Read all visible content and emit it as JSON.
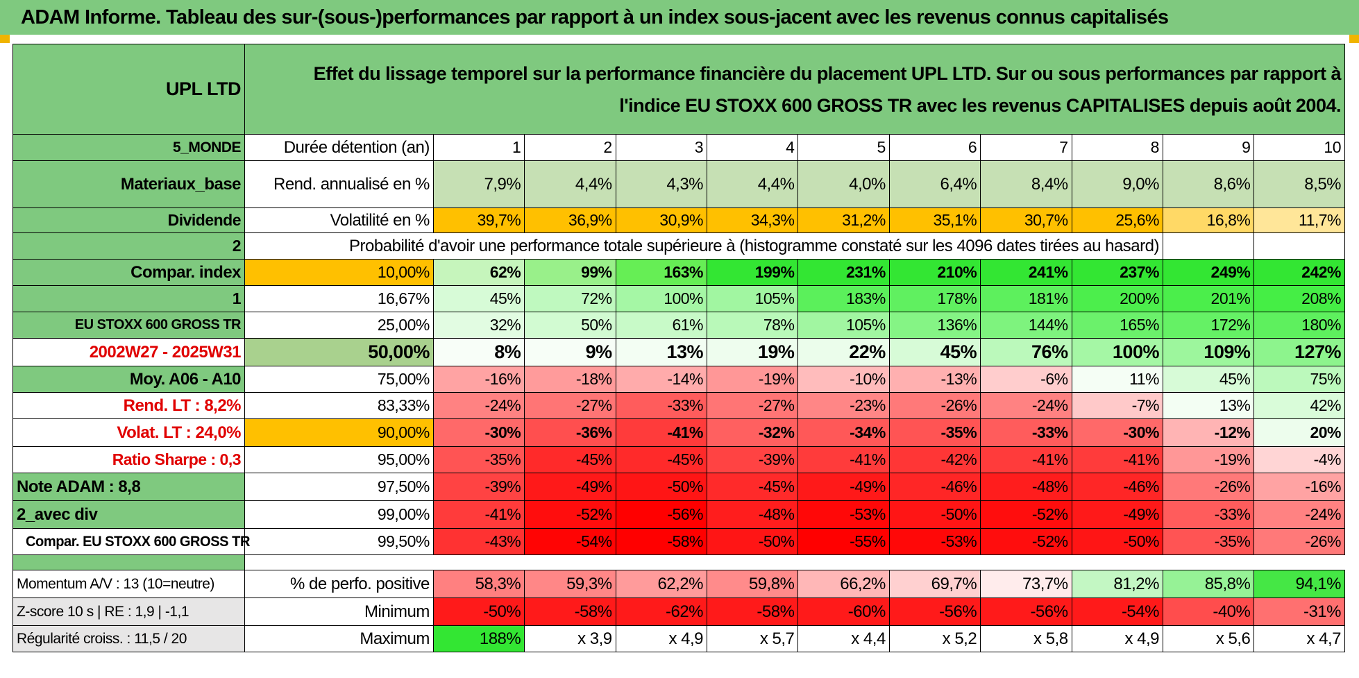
{
  "title": "ADAM Informe. Tableau des sur-(sous-)performances par rapport à un index sous-jacent avec les revenus connus capitalisés",
  "header": {
    "ticker": "UPL LTD",
    "description": "Effet du lissage temporel sur la performance financière du placement UPL LTD. Sur ou sous performances par rapport à l'indice EU STOXX 600 GROSS TR avec les revenus CAPITALISES depuis août 2004."
  },
  "left_labels": {
    "region": "5_MONDE",
    "sector": "Materiaux_base",
    "dividend": "Dividende",
    "val2": "2",
    "compar_index": "Compar. index",
    "val1": "1",
    "index_name": "EU STOXX 600 GROSS TR",
    "period": "2002W27 - 2025W31",
    "moy": "Moy. A06 - A10",
    "rend_lt": "Rend. LT :    8,2%",
    "volat_lt": "Volat. LT :    24,0%",
    "sharpe": "Ratio Sharpe :     0,3",
    "note": "Note ADAM : 8,8",
    "avec_div": "2_avec div",
    "compar_eu": "Compar. EU STOXX 600 GROSS TR",
    "momentum": "Momentum A/V : 13 (10=neutre)",
    "zscore": "Z-score 10 s | RE : 1,9 | -1,1",
    "regularite": "Régularité croiss. : 11,5 / 20"
  },
  "rows": {
    "duree": {
      "label": "Durée détention (an)",
      "values": [
        "1",
        "2",
        "3",
        "4",
        "5",
        "6",
        "7",
        "8",
        "9",
        "10"
      ]
    },
    "rend": {
      "label": "Rend. annualisé en %",
      "values": [
        "7,9%",
        "4,4%",
        "4,3%",
        "4,4%",
        "4,0%",
        "6,4%",
        "8,4%",
        "9,0%",
        "8,6%",
        "8,5%"
      ]
    },
    "vol": {
      "label": "Volatilité en %",
      "values": [
        "39,7%",
        "36,9%",
        "30,9%",
        "34,3%",
        "31,2%",
        "35,1%",
        "30,7%",
        "25,6%",
        "16,8%",
        "11,7%"
      ]
    },
    "proba_title": "Probabilité d'avoir une performance totale supérieure à (histogramme constaté sur les 4096 dates tirées au hasard)",
    "perc": [
      {
        "p": "10,00%",
        "values": [
          "62%",
          "99%",
          "163%",
          "199%",
          "231%",
          "210%",
          "241%",
          "237%",
          "249%",
          "242%"
        ]
      },
      {
        "p": "16,67%",
        "values": [
          "45%",
          "72%",
          "100%",
          "105%",
          "183%",
          "178%",
          "181%",
          "200%",
          "201%",
          "208%"
        ]
      },
      {
        "p": "25,00%",
        "values": [
          "32%",
          "50%",
          "61%",
          "78%",
          "105%",
          "136%",
          "144%",
          "165%",
          "172%",
          "180%"
        ]
      },
      {
        "p": "50,00%",
        "values": [
          "8%",
          "9%",
          "13%",
          "19%",
          "22%",
          "45%",
          "76%",
          "100%",
          "109%",
          "127%"
        ]
      },
      {
        "p": "75,00%",
        "values": [
          "-16%",
          "-18%",
          "-14%",
          "-19%",
          "-10%",
          "-13%",
          "-6%",
          "11%",
          "45%",
          "75%"
        ]
      },
      {
        "p": "83,33%",
        "values": [
          "-24%",
          "-27%",
          "-33%",
          "-27%",
          "-23%",
          "-26%",
          "-24%",
          "-7%",
          "13%",
          "42%"
        ]
      },
      {
        "p": "90,00%",
        "values": [
          "-30%",
          "-36%",
          "-41%",
          "-32%",
          "-34%",
          "-35%",
          "-33%",
          "-30%",
          "-12%",
          "20%"
        ]
      },
      {
        "p": "95,00%",
        "values": [
          "-35%",
          "-45%",
          "-45%",
          "-39%",
          "-41%",
          "-42%",
          "-41%",
          "-41%",
          "-19%",
          "-4%"
        ]
      },
      {
        "p": "97,50%",
        "values": [
          "-39%",
          "-49%",
          "-50%",
          "-45%",
          "-49%",
          "-46%",
          "-48%",
          "-46%",
          "-26%",
          "-16%"
        ]
      },
      {
        "p": "99,00%",
        "values": [
          "-41%",
          "-52%",
          "-56%",
          "-48%",
          "-53%",
          "-50%",
          "-52%",
          "-49%",
          "-33%",
          "-24%"
        ]
      },
      {
        "p": "99,50%",
        "values": [
          "-43%",
          "-54%",
          "-58%",
          "-50%",
          "-55%",
          "-53%",
          "-52%",
          "-50%",
          "-35%",
          "-26%"
        ]
      }
    ],
    "positive": {
      "label": "% de perfo. positive",
      "values": [
        "58,3%",
        "59,3%",
        "62,2%",
        "59,8%",
        "66,2%",
        "69,7%",
        "73,7%",
        "81,2%",
        "85,8%",
        "94,1%"
      ]
    },
    "minimum": {
      "label": "Minimum",
      "values": [
        "-50%",
        "-58%",
        "-62%",
        "-58%",
        "-60%",
        "-56%",
        "-56%",
        "-54%",
        "-40%",
        "-31%"
      ]
    },
    "maximum": {
      "label": "Maximum",
      "values": [
        "188%",
        "x 3,9",
        "x 4,9",
        "x 5,7",
        "x 4,4",
        "x 5,2",
        "x 5,8",
        "x 4,9",
        "x 5,6",
        "x 4,7"
      ]
    }
  },
  "colors": {
    "header_green": "#7fc97f",
    "bright_green": "#33e633",
    "orange": "#ffc000",
    "yellow": "#ffff00",
    "red_text": "#e00000"
  }
}
